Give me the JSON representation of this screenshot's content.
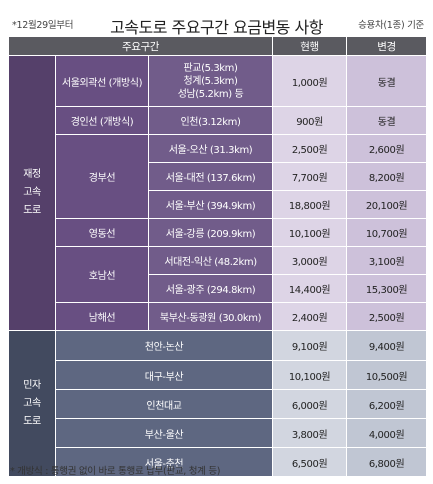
{
  "title": "고속도로 주요구간 요금변동 사항",
  "note_left": "*12월29일부터",
  "note_right": "승용차(1종) 기준",
  "headers": {
    "section": "주요구간",
    "current": "현행",
    "changed": "변경"
  },
  "categories": {
    "jaejeong": [
      "재정",
      "고속",
      "도로"
    ],
    "minja": [
      "민자",
      "고속",
      "도로"
    ]
  },
  "rows": {
    "seoul_outer": {
      "road": "서울외곽선 (개방식)",
      "section": [
        "판교(5.3km)",
        "청계(5.3km)",
        "성남(5.2km) 등"
      ],
      "current": "1,000원",
      "changed": "동결"
    },
    "gyeongin": {
      "road": "경인선 (개방식)",
      "section": "인천(3.12km)",
      "current": "900원",
      "changed": "동결"
    },
    "gyeongbu_road": "경부선",
    "gyeongbu": [
      {
        "section": "서울-오산 (31.3km)",
        "current": "2,500원",
        "changed": "2,600원"
      },
      {
        "section": "서울-대전 (137.6km)",
        "current": "7,700원",
        "changed": "8,200원"
      },
      {
        "section": "서울-부산 (394.9km)",
        "current": "18,800원",
        "changed": "20,100원"
      }
    ],
    "yeongdong": {
      "road": "영동선",
      "section": "서울-강릉 (209.9km)",
      "current": "10,100원",
      "changed": "10,700원"
    },
    "honam_road": "호남선",
    "honam": [
      {
        "section": "서대전-익산 (48.2km)",
        "current": "3,000원",
        "changed": "3,100원"
      },
      {
        "section": "서울-광주 (294.8km)",
        "current": "14,400원",
        "changed": "15,300원"
      }
    ],
    "namhae": {
      "road": "남해선",
      "section": "북부산-동광원 (30.0km)",
      "current": "2,400원",
      "changed": "2,500원"
    },
    "minja": [
      {
        "section": "천안-논산",
        "current": "9,100원",
        "changed": "9,400원"
      },
      {
        "section": "대구-부산",
        "current": "10,100원",
        "changed": "10,500원"
      },
      {
        "section": "인천대교",
        "current": "6,000원",
        "changed": "6,200원"
      },
      {
        "section": "부산-울산",
        "current": "3,800원",
        "changed": "4,000원"
      },
      {
        "section": "서울-춘천",
        "current": "6,500원",
        "changed": "6,800원"
      }
    ]
  },
  "footnote": "* 개방식 : 통행권 없이 바로 통행료 납부(판교, 청계 등)"
}
